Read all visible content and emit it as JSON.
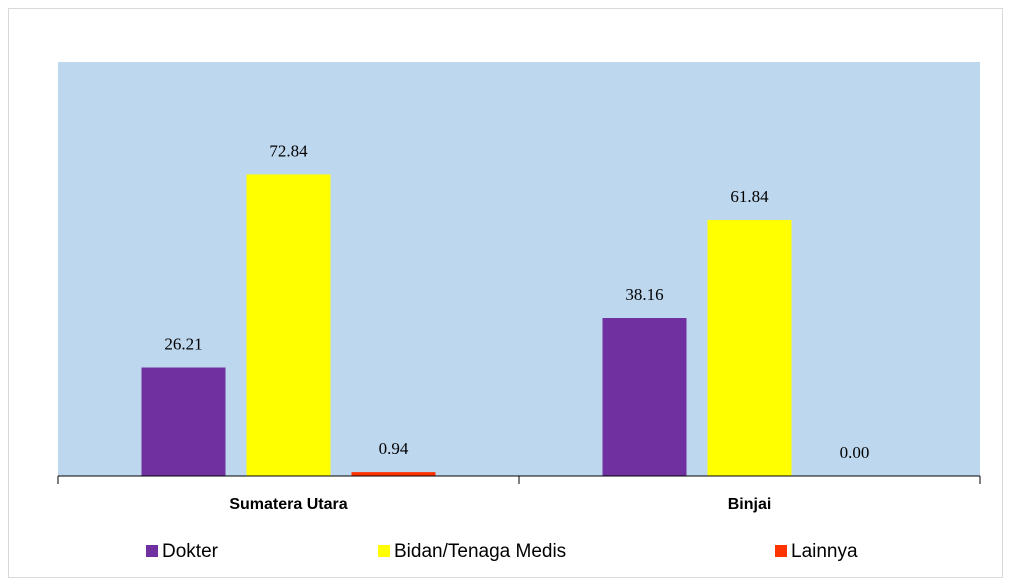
{
  "chart_data": {
    "type": "bar",
    "categories": [
      "Sumatera Utara",
      "Binjai"
    ],
    "series": [
      {
        "name": "Dokter",
        "color": "#7030a0",
        "values": [
          26.21,
          38.16
        ],
        "value_labels": [
          "26.21",
          "38.16"
        ]
      },
      {
        "name": "Bidan/Tenaga Medis",
        "color": "#ffff00",
        "values": [
          72.84,
          61.84
        ],
        "value_labels": [
          "72.84",
          "61.84"
        ]
      },
      {
        "name": "Lainnya",
        "color": "#ff3300",
        "values": [
          0.94,
          0
        ],
        "value_labels": [
          "0.94",
          "0.00"
        ]
      }
    ],
    "ylim": [
      0,
      100
    ],
    "plot_background": "#bdd7ee"
  }
}
